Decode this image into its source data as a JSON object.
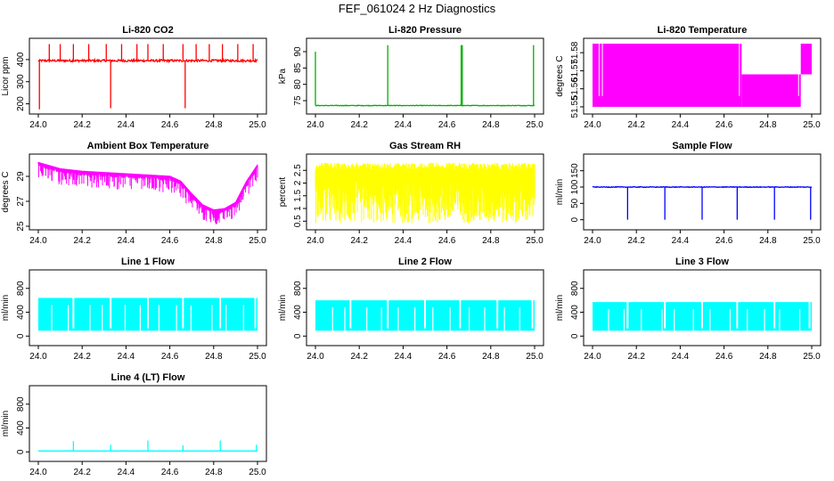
{
  "figure_title": "FEF_061024  2 Hz Diagnostics",
  "chart_data": [
    {
      "type": "line",
      "title": "Li-820 CO2",
      "ylabel": "Licor ppm",
      "color": "#ff0000",
      "xlim": [
        24.0,
        25.0
      ],
      "ylim": [
        170,
        480
      ],
      "xticks": [
        "24.0",
        "24.2",
        "24.4",
        "24.6",
        "24.8",
        "25.0"
      ],
      "yticks": [
        200,
        300,
        400
      ],
      "baseline": 395,
      "noise": 10,
      "dense": false,
      "spikes": [
        {
          "x": 24.005,
          "y": 175
        },
        {
          "x": 24.05,
          "y": 470
        },
        {
          "x": 24.1,
          "y": 470
        },
        {
          "x": 24.16,
          "y": 470
        },
        {
          "x": 24.23,
          "y": 470
        },
        {
          "x": 24.31,
          "y": 470
        },
        {
          "x": 24.33,
          "y": 180
        },
        {
          "x": 24.38,
          "y": 470
        },
        {
          "x": 24.45,
          "y": 470
        },
        {
          "x": 24.5,
          "y": 470
        },
        {
          "x": 24.57,
          "y": 470
        },
        {
          "x": 24.66,
          "y": 470
        },
        {
          "x": 24.67,
          "y": 180
        },
        {
          "x": 24.72,
          "y": 470
        },
        {
          "x": 24.78,
          "y": 470
        },
        {
          "x": 24.84,
          "y": 470
        },
        {
          "x": 24.91,
          "y": 470
        },
        {
          "x": 24.98,
          "y": 470
        }
      ]
    },
    {
      "type": "line",
      "title": "Li-820 Pressure",
      "ylabel": "kPa",
      "color": "#00b000",
      "xlim": [
        24.0,
        25.0
      ],
      "ylim": [
        72,
        93
      ],
      "xticks": [
        "24.0",
        "24.2",
        "24.4",
        "24.6",
        "24.8",
        "25.0"
      ],
      "yticks": [
        75,
        80,
        85,
        90
      ],
      "baseline": 73.5,
      "noise": 0.15,
      "dense": false,
      "spikes": [
        {
          "x": 24.0,
          "y": 90
        },
        {
          "x": 24.33,
          "y": 92
        },
        {
          "x": 24.665,
          "y": 92
        },
        {
          "x": 24.67,
          "y": 92
        },
        {
          "x": 24.995,
          "y": 92
        }
      ]
    },
    {
      "type": "area",
      "title": "Li-820 Temperature",
      "ylabel": "degrees C",
      "color": "#ff00ff",
      "xlim": [
        24.0,
        25.0
      ],
      "ylim": [
        51.548,
        51.586
      ],
      "xticks": [
        "24.0",
        "24.2",
        "24.4",
        "24.6",
        "24.8",
        "25.0"
      ],
      "yticks": [
        51.55,
        51.56,
        51.57,
        51.58
      ],
      "segments": [
        {
          "x0": 24.0,
          "x1": 24.68,
          "low": 51.55,
          "high": 51.585
        },
        {
          "x0": 24.68,
          "x1": 24.95,
          "low": 51.55,
          "high": 51.568
        },
        {
          "x0": 24.95,
          "x1": 25.0,
          "low": 51.568,
          "high": 51.585
        }
      ]
    },
    {
      "type": "line",
      "title": "Ambient Box Temperature",
      "ylabel": "degrees C",
      "color": "#ff00ff",
      "xlim": [
        24.0,
        25.0
      ],
      "ylim": [
        25,
        30.5
      ],
      "xticks": [
        "24.0",
        "24.2",
        "24.4",
        "24.6",
        "24.8",
        "25.0"
      ],
      "yticks": [
        25,
        27,
        29
      ],
      "x": [
        24.0,
        24.1,
        24.2,
        24.3,
        24.4,
        24.5,
        24.6,
        24.65,
        24.7,
        24.75,
        24.8,
        24.85,
        24.9,
        24.95,
        25.0
      ],
      "y": [
        30.0,
        29.5,
        29.3,
        29.2,
        29.1,
        29.0,
        28.9,
        28.5,
        27.5,
        26.6,
        26.2,
        26.3,
        26.8,
        28.5,
        29.8
      ],
      "dip": 1.2,
      "dense": true
    },
    {
      "type": "area",
      "title": "Gas Stream RH",
      "ylabel": "percent",
      "color": "#ffff00",
      "xlim": [
        24.0,
        25.0
      ],
      "ylim": [
        0.3,
        3.0
      ],
      "xticks": [
        "24.0",
        "24.2",
        "24.4",
        "24.6",
        "24.8",
        "25.0"
      ],
      "yticks": [
        0.5,
        1.0,
        1.5,
        2.0,
        2.5
      ],
      "band_low": 0.4,
      "band_high": 2.8,
      "dense": true
    },
    {
      "type": "line",
      "title": "Sample Flow",
      "ylabel": "ml/min",
      "color": "#0000ff",
      "xlim": [
        24.0,
        25.0
      ],
      "ylim": [
        -20,
        190
      ],
      "xticks": [
        "24.0",
        "24.2",
        "24.4",
        "24.6",
        "24.8",
        "25.0"
      ],
      "yticks": [
        0,
        50,
        100,
        150
      ],
      "baseline": 100,
      "noise": 2,
      "dense": false,
      "spikes": [
        {
          "x": 24.16,
          "y": 0
        },
        {
          "x": 24.33,
          "y": 0
        },
        {
          "x": 24.5,
          "y": 0
        },
        {
          "x": 24.66,
          "y": 0
        },
        {
          "x": 24.83,
          "y": 0
        },
        {
          "x": 24.995,
          "y": 0
        }
      ]
    },
    {
      "type": "area",
      "title": "Line 1 Flow",
      "ylabel": "ml/min",
      "color": "#00ffff",
      "xlim": [
        24.0,
        25.0
      ],
      "ylim": [
        -100,
        1050
      ],
      "xticks": [
        "24.0",
        "24.2",
        "24.4",
        "24.6",
        "24.8",
        "25.0"
      ],
      "yticks": [
        0,
        400,
        800
      ],
      "band_low": 90,
      "band_high": 640,
      "gaps": [
        24.16,
        24.33,
        24.5,
        24.66,
        24.83,
        24.99
      ]
    },
    {
      "type": "area",
      "title": "Line 2 Flow",
      "ylabel": "ml/min",
      "color": "#00ffff",
      "xlim": [
        24.0,
        25.0
      ],
      "ylim": [
        -100,
        1050
      ],
      "xticks": [
        "24.0",
        "24.2",
        "24.4",
        "24.6",
        "24.8",
        "25.0"
      ],
      "yticks": [
        0,
        400,
        800
      ],
      "band_low": 90,
      "band_high": 600,
      "gaps": [
        24.16,
        24.33,
        24.5,
        24.66,
        24.83,
        24.99
      ]
    },
    {
      "type": "area",
      "title": "Line 3 Flow",
      "ylabel": "ml/min",
      "color": "#00ffff",
      "xlim": [
        24.0,
        25.0
      ],
      "ylim": [
        -100,
        1050
      ],
      "xticks": [
        "24.0",
        "24.2",
        "24.4",
        "24.6",
        "24.8",
        "25.0"
      ],
      "yticks": [
        0,
        400,
        800
      ],
      "band_low": 90,
      "band_high": 570,
      "gaps": [
        24.16,
        24.33,
        24.5,
        24.66,
        24.83,
        24.99
      ]
    },
    {
      "type": "line",
      "title": "Line 4 (LT) Flow",
      "ylabel": "ml/min",
      "color": "#00ffff",
      "xlim": [
        24.0,
        25.0
      ],
      "ylim": [
        -100,
        1050
      ],
      "xticks": [
        "24.0",
        "24.2",
        "24.4",
        "24.6",
        "24.8",
        "25.0"
      ],
      "yticks": [
        0,
        400,
        800
      ],
      "baseline": 15,
      "noise": 2,
      "dense": false,
      "spikes": [
        {
          "x": 24.16,
          "y": 180
        },
        {
          "x": 24.33,
          "y": 120
        },
        {
          "x": 24.5,
          "y": 190
        },
        {
          "x": 24.66,
          "y": 110
        },
        {
          "x": 24.83,
          "y": 190
        },
        {
          "x": 24.995,
          "y": 120
        }
      ]
    }
  ]
}
